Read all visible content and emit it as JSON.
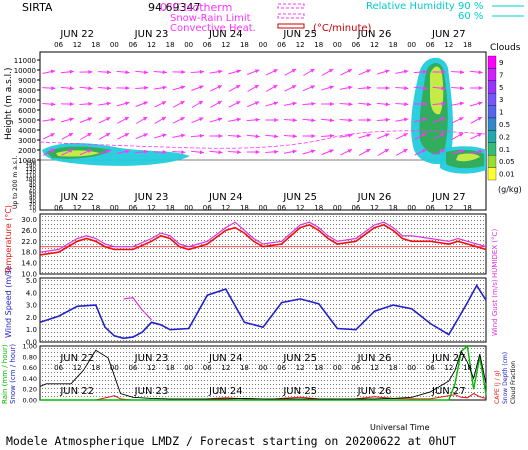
{
  "header": {
    "site": "SIRTA",
    "coords": "94.69347",
    "isotherm_label": "0°C isotherm",
    "snow_rain_label": "Snow-Rain Limit",
    "convective_label": "Convective Heat.",
    "convective_unit": "(°C/minute)",
    "rh_label": "Relative Humidity",
    "rh_90": "90 %",
    "rh_60": "60 %"
  },
  "footer": {
    "text": "Modele Atmospherique LMDZ / Forecast starting on 20200622 at 0hUT",
    "universal_time": "Universal Time"
  },
  "colors": {
    "isotherm": "#ff33ff",
    "convective": "#cc0000",
    "humidity": "#00cccc",
    "temperature": "#ee1111",
    "humidex": "#dd33dd",
    "wind": "#2222cc",
    "gust": "#dd33dd",
    "rain": "#00bb00",
    "snow": "#2222cc",
    "cloud_fraction": "#000000",
    "cape": "#ee1111"
  },
  "chart_data": [
    {
      "type": "heatmap",
      "panel": "clouds",
      "days": [
        "JUN 22",
        "JUN 23",
        "JUN 24",
        "JUN 25",
        "JUN 26",
        "JUN 27"
      ],
      "hour_ticks": [
        "06",
        "12",
        "18",
        "00",
        "06",
        "12",
        "18",
        "00",
        "06",
        "12",
        "18",
        "00",
        "06",
        "12",
        "18",
        "00",
        "06",
        "12",
        "18",
        "00",
        "06",
        "12",
        "18"
      ],
      "ylabel": "Height (m a.s.l.)",
      "ylabel_low": "Up to 200 m a.s.l.",
      "yticks_high": [
        1000,
        2000,
        3000,
        4000,
        5000,
        6000,
        7000,
        8000,
        9000,
        10000,
        11000
      ],
      "yticks_low": [
        0,
        10,
        20,
        30,
        40,
        50,
        60,
        70,
        80,
        90,
        100,
        110,
        120,
        130,
        140,
        150
      ],
      "colorbar_title": "Clouds",
      "colorbar_unit": "(g/kg)",
      "colorbar_ticks": [
        "9",
        "7",
        "5",
        "3",
        "1",
        "0.5",
        "0.2",
        "0.1",
        "0.05",
        "0.01"
      ]
    },
    {
      "type": "line",
      "panel": "temperature",
      "ylabel": "Temperature (°C)",
      "ylabel_right": "HUMIDEX (°C)",
      "yticks": [
        "10.0",
        "14.0",
        "18.0",
        "22.0",
        "26.0",
        "30.0"
      ],
      "ylim": [
        10,
        32
      ],
      "x_hours": [
        0,
        6,
        12,
        15,
        18,
        21,
        24,
        30,
        36,
        39,
        42,
        45,
        48,
        54,
        60,
        63,
        66,
        69,
        72,
        78,
        84,
        87,
        90,
        93,
        96,
        102,
        108,
        111,
        114,
        117,
        120,
        126,
        132,
        135,
        138,
        141,
        144
      ],
      "series": [
        {
          "name": "Temperature",
          "values": [
            17,
            18,
            22,
            23,
            22,
            20,
            19,
            19,
            22,
            24,
            23,
            20,
            19,
            21,
            26,
            27,
            25,
            22,
            20,
            21,
            27,
            28,
            26,
            23,
            21,
            22,
            27,
            28,
            26,
            23,
            22,
            22,
            21,
            22,
            21,
            20,
            19
          ]
        },
        {
          "name": "HUMIDEX",
          "values": [
            18,
            19,
            23,
            24,
            23,
            21,
            20,
            20,
            23,
            25,
            24,
            21,
            20,
            22,
            27,
            29,
            26,
            23,
            21,
            22,
            28,
            29,
            27,
            24,
            22,
            23,
            28,
            29,
            27,
            24,
            24,
            23,
            22,
            23,
            22,
            21,
            20
          ]
        }
      ]
    },
    {
      "type": "line",
      "panel": "wind",
      "ylabel": "Wind Speed (m/s)",
      "ylabel_right": "Wind Gust (m/s)",
      "yticks": [
        "0.0",
        "1.0",
        "2.0",
        "3.0",
        "4.0",
        "5.0"
      ],
      "ylim": [
        0,
        5.2
      ],
      "x_hours": [
        0,
        6,
        12,
        18,
        21,
        24,
        27,
        30,
        33,
        36,
        39,
        42,
        48,
        54,
        60,
        66,
        72,
        78,
        84,
        90,
        96,
        102,
        108,
        114,
        120,
        126,
        132,
        138,
        141,
        144
      ],
      "series": [
        {
          "name": "Wind Speed",
          "values": [
            1.6,
            2.1,
            2.9,
            3.0,
            1.2,
            0.5,
            0.3,
            0.4,
            0.8,
            1.6,
            1.4,
            1.0,
            1.1,
            3.8,
            4.3,
            1.6,
            1.2,
            3.2,
            3.5,
            3.1,
            1.1,
            1.0,
            2.5,
            3.0,
            2.7,
            1.5,
            0.6,
            3.2,
            4.6,
            3.4
          ]
        },
        {
          "name": "Wind Gust",
          "values": [
            null,
            null,
            null,
            null,
            null,
            null,
            3.5,
            3.6,
            2.6,
            1.8,
            null,
            null,
            null,
            null,
            null,
            null,
            null,
            null,
            null,
            null,
            null,
            null,
            null,
            null,
            null,
            null,
            null,
            null,
            null,
            null
          ]
        }
      ]
    },
    {
      "type": "line",
      "panel": "precipitation",
      "ylabel_left": "Rain (mm / hour)",
      "ylabel_left2": "Snow (cm / hour)",
      "ylabel_right": "CAPE (J / g)",
      "ylabel_right2": "Snow Depth (cm)",
      "ylabel_right3": "Cloud Fraction",
      "yticks": [
        "0.00",
        "0.20",
        "0.40",
        "0.60",
        "0.80",
        "1.00"
      ],
      "ylim": [
        0,
        1.0
      ],
      "xlabel": "Universal Time",
      "x_hours": [
        0,
        2,
        6,
        10,
        14,
        18,
        22,
        24,
        26,
        30,
        36,
        42,
        48,
        54,
        60,
        66,
        72,
        78,
        84,
        90,
        96,
        102,
        108,
        114,
        120,
        126,
        132,
        134,
        136,
        138,
        140,
        142,
        144
      ],
      "series": [
        {
          "name": "Cloud Fraction",
          "values": [
            0.25,
            0.3,
            0.3,
            0.3,
            0.55,
            0.92,
            0.78,
            0.45,
            0.12,
            0.05,
            0.03,
            0.02,
            0.02,
            0.02,
            0.02,
            0.03,
            0.02,
            0.02,
            0.02,
            0.02,
            0.02,
            0.02,
            0.02,
            0.03,
            0.05,
            0.15,
            0.35,
            0.55,
            0.9,
            0.7,
            0.4,
            0.85,
            0.3
          ]
        },
        {
          "name": "CAPE",
          "values": [
            0,
            0,
            0,
            0,
            0,
            0,
            0.05,
            0.08,
            0.02,
            0,
            0,
            0,
            0,
            0.02,
            0.04,
            0.02,
            0,
            0.03,
            0.05,
            0.02,
            0,
            0.02,
            0.06,
            0.03,
            0.02,
            0.02,
            0.08,
            0.1,
            0.05,
            0.04,
            0.12,
            0.06,
            0.03
          ]
        },
        {
          "name": "Rain",
          "values": [
            0,
            0,
            0,
            0,
            0,
            0,
            0,
            0,
            0,
            0,
            0,
            0,
            0,
            0,
            0,
            0,
            0,
            0,
            0,
            0,
            0,
            0,
            0,
            0,
            0,
            0,
            0,
            0.3,
            0.9,
            1.0,
            0.2,
            0.8,
            0.1
          ]
        }
      ]
    }
  ]
}
